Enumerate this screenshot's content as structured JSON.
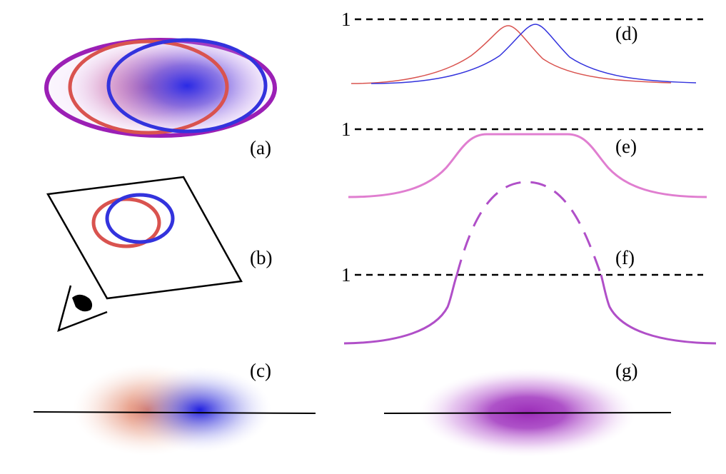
{
  "panels": {
    "a": {
      "label": "(a)"
    },
    "b": {
      "label": "(b)"
    },
    "c": {
      "label": "(c)"
    },
    "d": {
      "label": "(d)",
      "level_label": "1"
    },
    "e": {
      "label": "(e)",
      "level_label": "1"
    },
    "f": {
      "label": "(f)",
      "level_label": "1"
    },
    "g": {
      "label": "(g)"
    }
  },
  "colors": {
    "red": "#d9534f",
    "blue": "#3333dd",
    "purple": "#9b1fb5",
    "pink": "#e07ed0",
    "violet": "#b04fc8",
    "black": "#000000"
  },
  "icons": {
    "eye": "eye-icon"
  }
}
